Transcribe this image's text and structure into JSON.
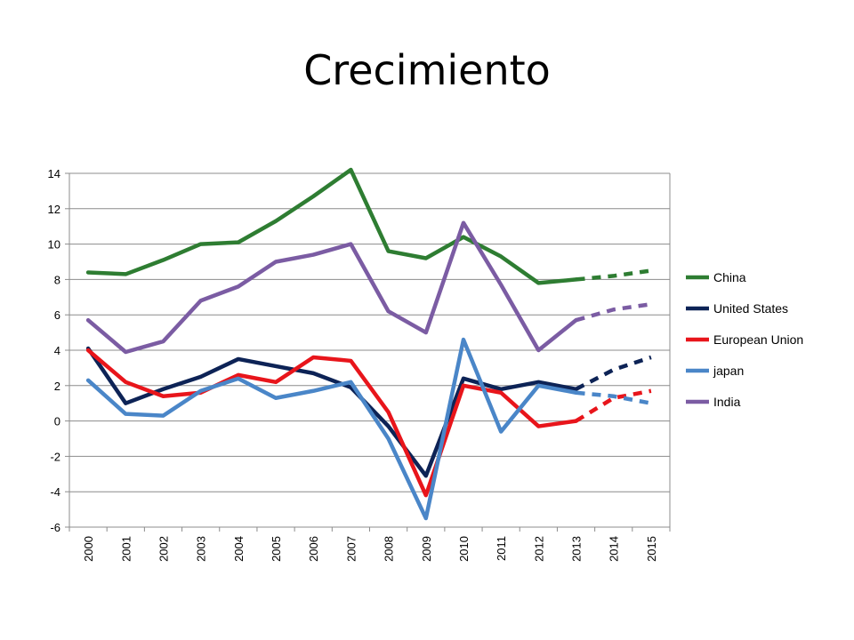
{
  "slide": {
    "title": "Crecimiento"
  },
  "chart_data": {
    "type": "line",
    "title": "Crecimiento",
    "xlabel": "",
    "ylabel": "",
    "ylim": [
      -6,
      14
    ],
    "yticks": [
      14,
      12,
      10,
      8,
      6,
      4,
      2,
      0,
      -2,
      -4,
      -6
    ],
    "grid": true,
    "legend_position": "right",
    "categories": [
      "2000",
      "2001",
      "2002",
      "2003",
      "2004",
      "2005",
      "2006",
      "2007",
      "2008",
      "2009",
      "2010",
      "2011",
      "2012",
      "2013",
      "2014",
      "2015"
    ],
    "projection_start_index": 13,
    "series": [
      {
        "name": "China",
        "color": "#2e7d32",
        "values": [
          8.4,
          8.3,
          9.1,
          10.0,
          10.1,
          11.3,
          12.7,
          14.2,
          9.6,
          9.2,
          10.4,
          9.3,
          7.8,
          8.0,
          8.2,
          8.5
        ]
      },
      {
        "name": "United States",
        "color": "#0d2356",
        "values": [
          4.1,
          1.0,
          1.8,
          2.5,
          3.5,
          3.1,
          2.7,
          1.9,
          -0.3,
          -3.1,
          2.4,
          1.8,
          2.2,
          1.8,
          2.9,
          3.6
        ]
      },
      {
        "name": "European Union",
        "color": "#e8151b",
        "values": [
          4.0,
          2.2,
          1.4,
          1.6,
          2.6,
          2.2,
          3.6,
          3.4,
          0.5,
          -4.2,
          2.0,
          1.6,
          -0.3,
          0.0,
          1.3,
          1.7
        ]
      },
      {
        "name": "japan",
        "color": "#4a86c8",
        "values": [
          2.3,
          0.4,
          0.3,
          1.7,
          2.4,
          1.3,
          1.7,
          2.2,
          -1.0,
          -5.5,
          4.6,
          -0.6,
          2.0,
          1.6,
          1.4,
          1.0
        ]
      },
      {
        "name": "India",
        "color": "#7b5ca3",
        "values": [
          5.7,
          3.9,
          4.5,
          6.8,
          7.6,
          9.0,
          9.4,
          10.0,
          6.2,
          5.0,
          11.2,
          7.7,
          4.0,
          5.7,
          6.3,
          6.6
        ]
      }
    ]
  }
}
